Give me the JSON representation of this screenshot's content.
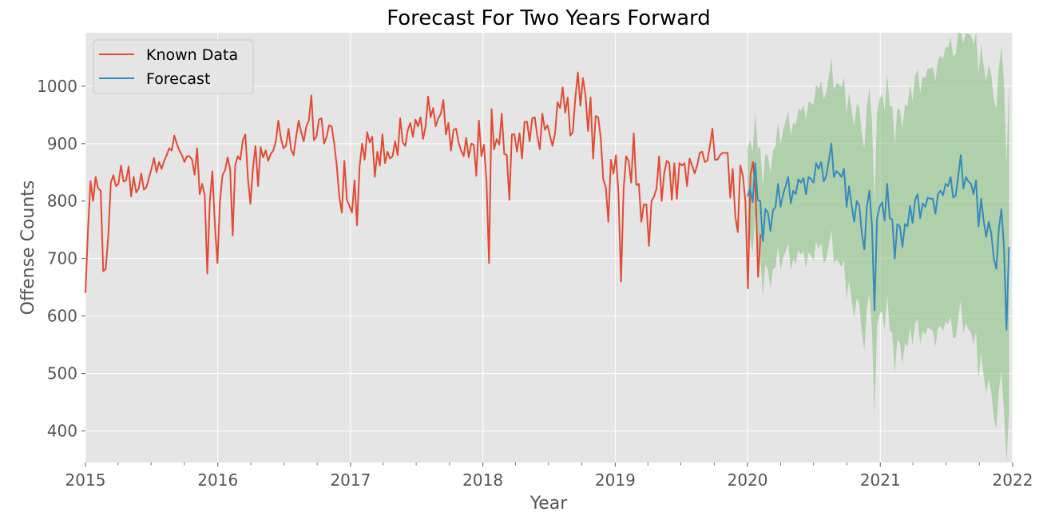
{
  "chart_data": {
    "type": "line",
    "title": "Forecast For Two Years Forward",
    "xlabel": "Year",
    "ylabel": "Offense Counts",
    "xlim": [
      "2015-01-01",
      "2022-01-01"
    ],
    "ylim": [
      345,
      1093
    ],
    "x_ticks": [
      "2015",
      "2016",
      "2017",
      "2018",
      "2019",
      "2020",
      "2021",
      "2022"
    ],
    "y_ticks": [
      400,
      500,
      600,
      700,
      800,
      900,
      1000
    ],
    "grid": true,
    "legend_position": "top-left",
    "style": "ggplot",
    "colors": {
      "known": "#E24A33",
      "forecast": "#348ABD",
      "interval": "#8CC084",
      "plot_bg": "#E5E5E5",
      "grid": "#FFFFFF"
    },
    "series": [
      {
        "name": "Known Data",
        "color": "#E24A33",
        "frequency": "weekly",
        "start": "2015-01-01",
        "values": [
          640,
          750,
          835,
          800,
          842,
          822,
          818,
          678,
          682,
          740,
          832,
          845,
          826,
          830,
          862,
          834,
          836,
          860,
          808,
          842,
          815,
          822,
          848,
          820,
          824,
          840,
          856,
          875,
          850,
          868,
          856,
          870,
          880,
          892,
          888,
          914,
          900,
          888,
          880,
          868,
          878,
          878,
          872,
          846,
          892,
          812,
          830,
          810,
          674,
          800,
          852,
          758,
          692,
          800,
          845,
          854,
          876,
          856,
          740,
          862,
          878,
          872,
          906,
          916,
          840,
          795,
          858,
          896,
          826,
          894,
          876,
          888,
          870,
          882,
          888,
          904,
          940,
          910,
          892,
          896,
          926,
          890,
          880,
          912,
          940,
          920,
          904,
          930,
          940,
          984,
          906,
          912,
          942,
          944,
          900,
          912,
          932,
          930,
          900,
          862,
          808,
          780,
          870,
          802,
          792,
          780,
          836,
          758,
          860,
          900,
          872,
          920,
          902,
          912,
          842,
          886,
          862,
          916,
          866,
          886,
          874,
          878,
          904,
          880,
          944,
          902,
          896,
          924,
          936,
          912,
          942,
          930,
          946,
          908,
          930,
          982,
          946,
          962,
          930,
          944,
          952,
          976,
          916,
          936,
          888,
          924,
          926,
          902,
          888,
          878,
          910,
          876,
          900,
          898,
          844,
          940,
          878,
          898,
          834,
          692,
          960,
          890,
          908,
          898,
          952,
          882,
          880,
          802,
          916,
          916,
          886,
          918,
          874,
          938,
          938,
          904,
          944,
          946,
          914,
          890,
          952,
          924,
          932,
          914,
          896,
          918,
          972,
          962,
          998,
          954,
          980,
          914,
          920,
          980,
          1024,
          966,
          1014,
          984,
          922,
          980,
          874,
          948,
          946,
          910,
          838,
          824,
          764,
          872,
          848,
          880,
          812,
          660,
          820,
          878,
          870,
          832,
          918,
          828,
          830,
          764,
          794,
          794,
          722,
          800,
          808,
          822,
          878,
          800,
          848,
          870,
          866,
          802,
          866,
          804,
          866,
          862,
          866,
          826,
          874,
          862,
          848,
          862,
          884,
          886,
          868,
          870,
          896,
          926,
          872,
          872,
          880,
          884,
          884,
          884,
          806,
          856,
          774,
          746,
          862,
          844,
          800,
          648,
          846,
          868,
          818,
          668,
          742
        ]
      },
      {
        "name": "Forecast",
        "color": "#348ABD",
        "frequency": "weekly",
        "start": "2020-01-01",
        "values": [
          808,
          822,
          798,
          866,
          802,
          800,
          730,
          786,
          780,
          748,
          784,
          790,
          830,
          790,
          812,
          826,
          842,
          796,
          818,
          812,
          838,
          832,
          840,
          812,
          842,
          838,
          832,
          866,
          856,
          868,
          834,
          844,
          870,
          900,
          842,
          852,
          848,
          842,
          856,
          790,
          826,
          792,
          764,
          800,
          792,
          744,
          716,
          790,
          818,
          758,
          610,
          770,
          790,
          798,
          766,
          830,
          770,
          768,
          700,
          760,
          756,
          720,
          760,
          756,
          792,
          762,
          802,
          812,
          770,
          796,
          790,
          806,
          804,
          804,
          778,
          812,
          818,
          810,
          830,
          826,
          842,
          806,
          810,
          844,
          880,
          822,
          842,
          834,
          830,
          812,
          836,
          756,
          804,
          766,
          738,
          764,
          744,
          700,
          682,
          752,
          786,
          720,
          576,
          720
        ]
      },
      {
        "name": "Confidence Interval",
        "color": "#8CC084",
        "frequency": "weekly",
        "start": "2020-01-01",
        "lower": [
          725,
          737,
          711,
          777,
          711,
          707,
          635,
          689,
          681,
          647,
          681,
          685,
          723,
          681,
          701,
          713,
          727,
          679,
          699,
          691,
          715,
          707,
          713,
          683,
          711,
          705,
          697,
          729,
          717,
          727,
          691,
          699,
          723,
          751,
          691,
          699,
          693,
          685,
          697,
          629,
          663,
          627,
          597,
          631,
          621,
          571,
          541,
          613,
          639,
          577,
          427,
          585,
          603,
          609,
          575,
          637,
          575,
          571,
          501,
          559,
          553,
          515,
          553,
          547,
          581,
          549,
          587,
          595,
          551,
          575,
          567,
          581,
          577,
          575,
          547,
          579,
          583,
          573,
          591,
          585,
          599,
          561,
          563,
          595,
          629,
          569,
          587,
          577,
          571,
          551,
          573,
          491,
          537,
          497,
          467,
          491,
          469,
          423,
          403,
          471,
          503,
          435,
          289,
          431
        ],
        "upper": [
          891,
          907,
          885,
          955,
          893,
          893,
          825,
          883,
          879,
          849,
          887,
          895,
          937,
          899,
          923,
          939,
          957,
          913,
          937,
          933,
          961,
          957,
          967,
          941,
          973,
          971,
          967,
          1003,
          995,
          1009,
          977,
          989,
          1017,
          1049,
          993,
          1005,
          1003,
          999,
          1015,
          951,
          989,
          957,
          931,
          969,
          963,
          917,
          891,
          967,
          997,
          939,
          793,
          955,
          977,
          987,
          957,
          1023,
          965,
          965,
          899,
          961,
          959,
          925,
          967,
          965,
          1003,
          975,
          1017,
          1029,
          989,
          1017,
          1013,
          1031,
          1031,
          1033,
          1009,
          1045,
          1053,
          1047,
          1069,
          1067,
          1085,
          1051,
          1057,
          1093,
          1131,
          1075,
          1097,
          1091,
          1089,
          1073,
          1099,
          1021,
          1071,
          1035,
          1009,
          1037,
          1019,
          977,
          961,
          1033,
          1069,
          1005,
          863,
          1009
        ]
      }
    ]
  }
}
